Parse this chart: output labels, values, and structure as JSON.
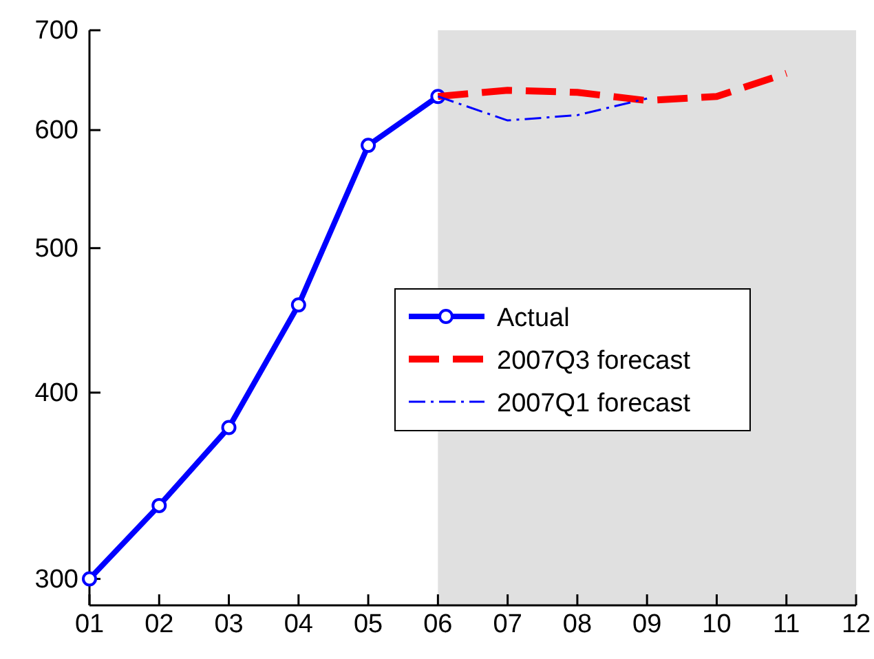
{
  "chart_data": {
    "type": "line",
    "log": "y",
    "xlim": [
      1,
      12
    ],
    "ylim": [
      288,
      700
    ],
    "xticks": [
      {
        "value": 1,
        "label": "01"
      },
      {
        "value": 2,
        "label": "02"
      },
      {
        "value": 3,
        "label": "03"
      },
      {
        "value": 4,
        "label": "04"
      },
      {
        "value": 5,
        "label": "05"
      },
      {
        "value": 6,
        "label": "06"
      },
      {
        "value": 7,
        "label": "07"
      },
      {
        "value": 8,
        "label": "08"
      },
      {
        "value": 9,
        "label": "09"
      },
      {
        "value": 10,
        "label": "10"
      },
      {
        "value": 11,
        "label": "11"
      },
      {
        "value": 12,
        "label": "12"
      }
    ],
    "yticks": [
      300,
      400,
      500,
      600,
      700
    ],
    "bands": [
      {
        "axis": "x",
        "from": 6,
        "to": 12,
        "color": "#e0e0e0"
      }
    ],
    "legend": "center",
    "grid": false,
    "series": [
      {
        "name": "Actual",
        "color": "#0000ff",
        "x": [
          1,
          2,
          3,
          4,
          5,
          6
        ],
        "values": [
          300,
          336,
          379,
          458,
          586,
          632
        ],
        "marker": "circle",
        "line_style": "solid"
      },
      {
        "name": "2007Q3 forecast",
        "color": "#ff0000",
        "x": [
          6,
          7,
          8,
          9,
          10,
          11
        ],
        "values": [
          632,
          638,
          636,
          628,
          632,
          655
        ],
        "marker": "none",
        "line_style": "dashed"
      },
      {
        "name": "2007Q1 forecast",
        "color": "#0000ff",
        "x": [
          6,
          7,
          8,
          9
        ],
        "values": [
          632,
          609,
          614,
          630
        ],
        "marker": "none",
        "line_style": "dashdot"
      }
    ]
  }
}
